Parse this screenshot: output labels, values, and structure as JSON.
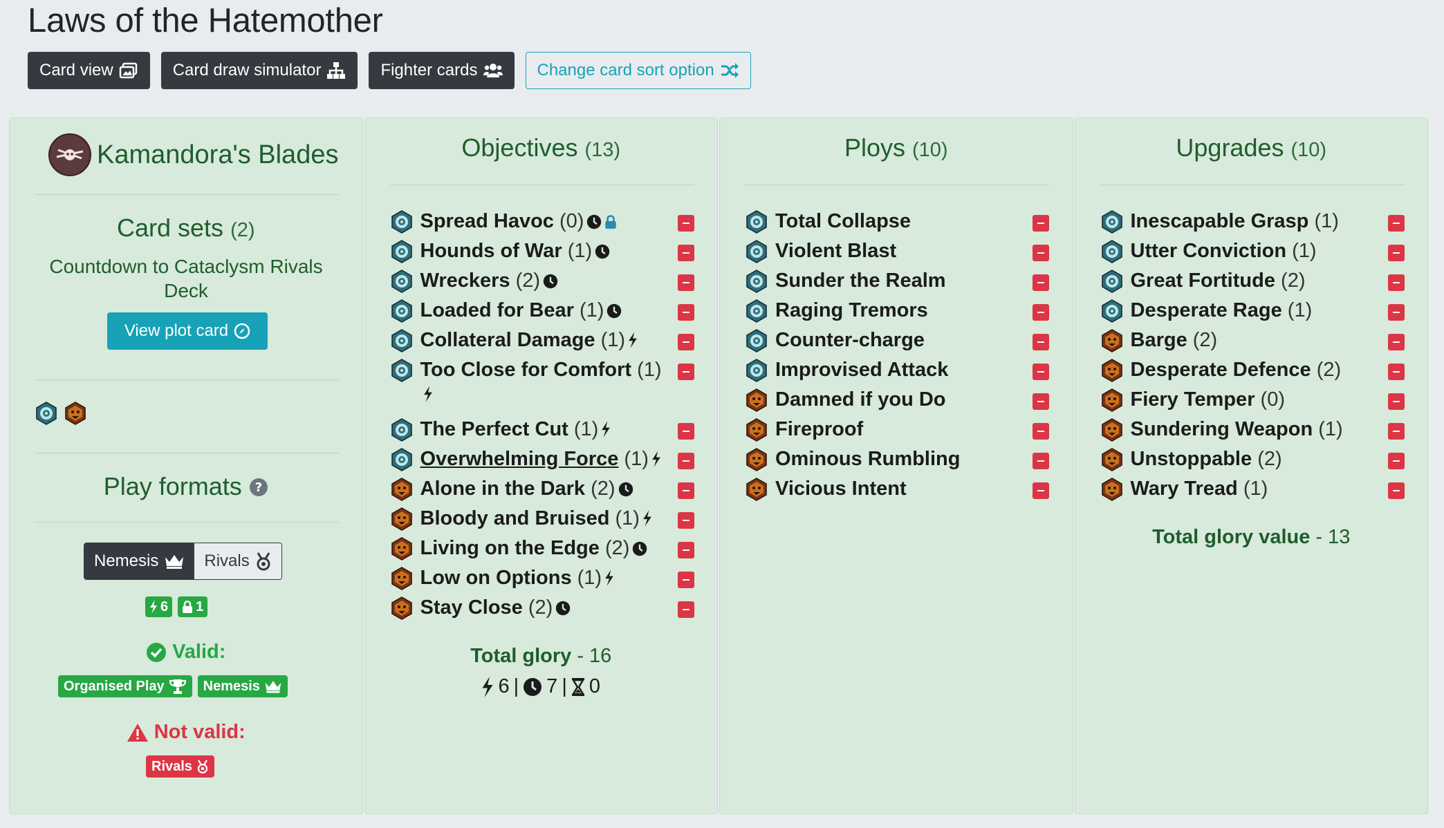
{
  "title": "Laws of the Hatemother",
  "toolbar": {
    "card_view": "Card view",
    "card_draw": "Card draw simulator",
    "fighter_cards": "Fighter cards",
    "sort_option": "Change card sort option"
  },
  "faction": {
    "name": "Kamandora's Blades",
    "card_sets_title": "Card sets",
    "card_sets_count": "(2)",
    "card_set_name": "Countdown to Cataclysm Rivals Deck",
    "view_plot": "View plot card",
    "play_formats_title": "Play formats",
    "format_nemesis": "Nemesis",
    "format_rivals": "Rivals",
    "surge_count": "6",
    "restricted_count": "1",
    "valid_label": "Valid:",
    "valid_badges": [
      "Organised Play",
      "Nemesis"
    ],
    "not_valid_label": "Not valid:",
    "not_valid_badges": [
      "Rivals"
    ]
  },
  "objectives": {
    "title": "Objectives",
    "count": "(13)",
    "total_label": "Total glory",
    "total_value": " - 16",
    "surge": "6",
    "end_phase": "7",
    "third_end": "0",
    "cards": [
      {
        "name": "Spread Havoc",
        "glory": "(0)",
        "set": "rivals",
        "marks": [
          "clock",
          "lock"
        ]
      },
      {
        "name": "Hounds of War",
        "glory": "(1)",
        "set": "rivals",
        "marks": [
          "clock"
        ]
      },
      {
        "name": "Wreckers",
        "glory": "(2)",
        "set": "rivals",
        "marks": [
          "clock"
        ]
      },
      {
        "name": "Loaded for Bear",
        "glory": "(1)",
        "set": "rivals",
        "marks": [
          "clock"
        ]
      },
      {
        "name": "Collateral Damage",
        "glory": "(1)",
        "set": "rivals",
        "marks": [
          "bolt"
        ]
      },
      {
        "name": "Too Close for Comfort",
        "glory": "(1)",
        "set": "rivals",
        "marks": [
          "bolt"
        ],
        "wrap": true
      },
      {
        "name": "The Perfect Cut",
        "glory": "(1)",
        "set": "rivals",
        "marks": [
          "bolt"
        ]
      },
      {
        "name": "Overwhelming Force",
        "glory": "(1)",
        "set": "rivals",
        "marks": [
          "bolt"
        ],
        "underline": true
      },
      {
        "name": "Alone in the Dark",
        "glory": "(2)",
        "set": "faction",
        "marks": [
          "clock"
        ]
      },
      {
        "name": "Bloody and Bruised",
        "glory": "(1)",
        "set": "faction",
        "marks": [
          "bolt"
        ]
      },
      {
        "name": "Living on the Edge",
        "glory": "(2)",
        "set": "faction",
        "marks": [
          "clock"
        ]
      },
      {
        "name": "Low on Options",
        "glory": "(1)",
        "set": "faction",
        "marks": [
          "bolt"
        ]
      },
      {
        "name": "Stay Close",
        "glory": "(2)",
        "set": "faction",
        "marks": [
          "clock"
        ]
      }
    ]
  },
  "ploys": {
    "title": "Ploys",
    "count": "(10)",
    "cards": [
      {
        "name": "Total Collapse",
        "glory": "",
        "set": "rivals",
        "marks": []
      },
      {
        "name": "Violent Blast",
        "glory": "",
        "set": "rivals",
        "marks": []
      },
      {
        "name": "Sunder the Realm",
        "glory": "",
        "set": "rivals",
        "marks": []
      },
      {
        "name": "Raging Tremors",
        "glory": "",
        "set": "rivals",
        "marks": []
      },
      {
        "name": "Counter-charge",
        "glory": "",
        "set": "rivals",
        "marks": []
      },
      {
        "name": "Improvised Attack",
        "glory": "",
        "set": "rivals",
        "marks": []
      },
      {
        "name": "Damned if you Do",
        "glory": "",
        "set": "faction",
        "marks": []
      },
      {
        "name": "Fireproof",
        "glory": "",
        "set": "faction",
        "marks": []
      },
      {
        "name": "Ominous Rumbling",
        "glory": "",
        "set": "faction",
        "marks": []
      },
      {
        "name": "Vicious Intent",
        "glory": "",
        "set": "faction",
        "marks": []
      }
    ]
  },
  "upgrades": {
    "title": "Upgrades",
    "count": "(10)",
    "total_label": "Total glory value",
    "total_value": " - 13",
    "cards": [
      {
        "name": "Inescapable Grasp",
        "glory": "(1)",
        "set": "rivals",
        "marks": []
      },
      {
        "name": "Utter Conviction",
        "glory": "(1)",
        "set": "rivals",
        "marks": []
      },
      {
        "name": "Great Fortitude",
        "glory": "(2)",
        "set": "rivals",
        "marks": []
      },
      {
        "name": "Desperate Rage",
        "glory": "(1)",
        "set": "rivals",
        "marks": []
      },
      {
        "name": "Barge",
        "glory": "(2)",
        "set": "faction",
        "marks": []
      },
      {
        "name": "Desperate Defence",
        "glory": "(2)",
        "set": "faction",
        "marks": []
      },
      {
        "name": "Fiery Temper",
        "glory": "(0)",
        "set": "faction",
        "marks": []
      },
      {
        "name": "Sundering Weapon",
        "glory": "(1)",
        "set": "faction",
        "marks": []
      },
      {
        "name": "Unstoppable",
        "glory": "(2)",
        "set": "faction",
        "marks": []
      },
      {
        "name": "Wary Tread",
        "glory": "(1)",
        "set": "faction",
        "marks": []
      }
    ]
  },
  "colors": {
    "dark": "#343a40",
    "info": "#17a2b8",
    "success": "#28a745",
    "danger": "#dc3545",
    "panel": "#d7eadb",
    "heading_green": "#1f5d2d"
  }
}
